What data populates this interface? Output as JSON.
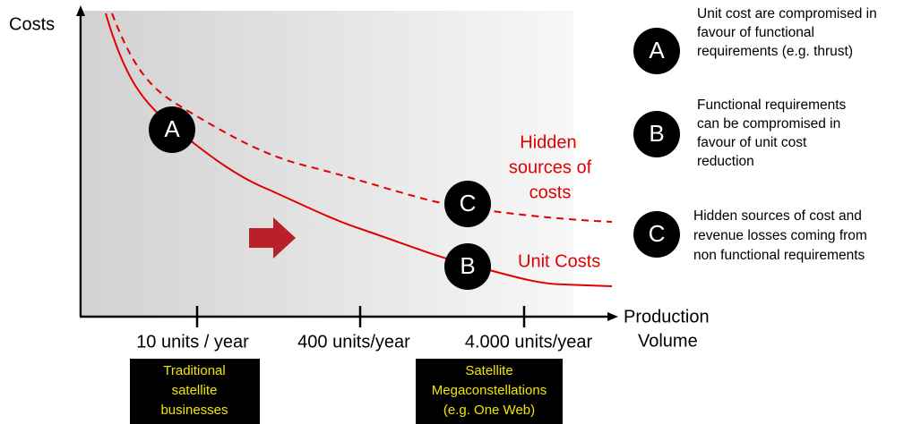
{
  "y_axis_label": "Costs",
  "x_axis_label": [
    "Production",
    "Volume"
  ],
  "x_markers": [
    "10 units / year",
    "400 units/year",
    "4.000 units/year"
  ],
  "boxes": [
    [
      "Traditional",
      "satellite",
      "businesses"
    ],
    [
      "Satellite",
      "Megaconstellations",
      "(e.g. One Web)"
    ]
  ],
  "curve_labels": {
    "hidden": [
      "Hidden",
      "sources of",
      "costs"
    ],
    "unit": "Unit Costs"
  },
  "chart_markers": {
    "a": "A",
    "b": "B",
    "c": "C"
  },
  "legend": [
    {
      "letter": "A",
      "lines": [
        "Unit cost are compromised in",
        "favour of functional",
        "requirements (e.g. thrust)"
      ]
    },
    {
      "letter": "B",
      "lines": [
        "Functional requirements",
        "can be compromised in",
        "favour of unit cost",
        "reduction"
      ]
    },
    {
      "letter": "C",
      "lines": [
        "Hidden sources of cost and",
        "revenue losses coming from",
        "non functional requirements"
      ]
    }
  ]
}
